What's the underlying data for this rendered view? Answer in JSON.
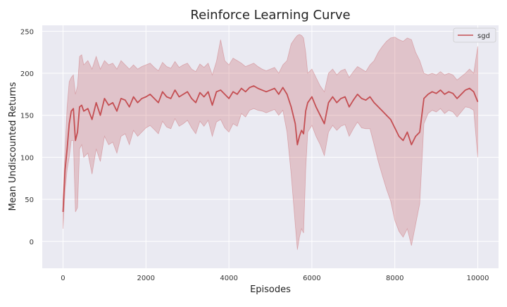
{
  "chart_data": {
    "type": "line",
    "title": "Reinforce Learning Curve",
    "xlabel": "Episodes",
    "ylabel": "Mean Undiscounted Returns",
    "xlim": [
      -500,
      10500
    ],
    "ylim": [
      -32,
      257
    ],
    "xticks": [
      0,
      2000,
      4000,
      6000,
      8000,
      10000
    ],
    "yticks": [
      0,
      50,
      100,
      150,
      200,
      250
    ],
    "grid": true,
    "legend_position": "top-right",
    "colors": {
      "line": "#c44e52",
      "band": "#c44e52",
      "background": "#eaeaf2",
      "grid": "#ffffff"
    },
    "series": [
      {
        "name": "sgd",
        "x": [
          0,
          50,
          100,
          150,
          200,
          250,
          300,
          350,
          400,
          450,
          500,
          600,
          700,
          800,
          900,
          1000,
          1100,
          1200,
          1300,
          1400,
          1500,
          1600,
          1700,
          1800,
          1900,
          2000,
          2100,
          2200,
          2300,
          2400,
          2500,
          2600,
          2700,
          2800,
          2900,
          3000,
          3100,
          3200,
          3300,
          3400,
          3500,
          3600,
          3700,
          3800,
          3900,
          4000,
          4100,
          4200,
          4300,
          4400,
          4500,
          4600,
          4700,
          4800,
          4900,
          5000,
          5100,
          5200,
          5300,
          5400,
          5500,
          5600,
          5650,
          5700,
          5750,
          5800,
          5850,
          5900,
          6000,
          6100,
          6200,
          6300,
          6400,
          6500,
          6600,
          6700,
          6800,
          6900,
          7000,
          7100,
          7200,
          7300,
          7400,
          7500,
          7600,
          7700,
          7800,
          7900,
          8000,
          8100,
          8200,
          8300,
          8400,
          8500,
          8600,
          8700,
          8800,
          8900,
          9000,
          9100,
          9200,
          9300,
          9400,
          9500,
          9600,
          9700,
          9800,
          9900,
          10000
        ],
        "mean": [
          35,
          85,
          110,
          140,
          155,
          158,
          120,
          130,
          160,
          162,
          155,
          158,
          145,
          165,
          150,
          170,
          162,
          165,
          155,
          170,
          168,
          160,
          172,
          165,
          170,
          172,
          175,
          170,
          165,
          178,
          172,
          170,
          180,
          172,
          175,
          178,
          170,
          165,
          177,
          172,
          178,
          162,
          178,
          180,
          175,
          170,
          178,
          175,
          182,
          178,
          183,
          185,
          182,
          180,
          178,
          180,
          182,
          175,
          183,
          175,
          160,
          140,
          115,
          125,
          132,
          128,
          155,
          165,
          172,
          160,
          150,
          140,
          165,
          172,
          165,
          170,
          172,
          160,
          168,
          175,
          170,
          168,
          172,
          165,
          160,
          155,
          150,
          145,
          135,
          125,
          120,
          130,
          115,
          125,
          130,
          170,
          175,
          178,
          176,
          180,
          175,
          178,
          176,
          170,
          175,
          180,
          182,
          178,
          166
        ],
        "upper": [
          50,
          110,
          160,
          190,
          195,
          198,
          175,
          185,
          220,
          222,
          210,
          215,
          205,
          220,
          205,
          215,
          210,
          212,
          205,
          215,
          210,
          205,
          210,
          205,
          208,
          210,
          212,
          207,
          203,
          213,
          208,
          206,
          214,
          207,
          210,
          212,
          205,
          202,
          211,
          207,
          212,
          198,
          214,
          240,
          215,
          210,
          218,
          215,
          212,
          208,
          210,
          212,
          208,
          205,
          203,
          205,
          207,
          200,
          210,
          215,
          235,
          242,
          245,
          246,
          245,
          242,
          225,
          200,
          205,
          195,
          185,
          178,
          200,
          205,
          198,
          203,
          205,
          195,
          202,
          208,
          205,
          202,
          210,
          215,
          225,
          232,
          238,
          242,
          243,
          240,
          238,
          242,
          240,
          225,
          215,
          200,
          198,
          200,
          198,
          202,
          198,
          200,
          198,
          192,
          196,
          200,
          205,
          200,
          232
        ],
        "lower": [
          15,
          60,
          85,
          100,
          120,
          120,
          35,
          40,
          110,
          115,
          100,
          105,
          80,
          110,
          95,
          125,
          115,
          118,
          105,
          125,
          128,
          115,
          132,
          125,
          130,
          135,
          138,
          133,
          128,
          143,
          136,
          134,
          146,
          137,
          140,
          144,
          135,
          128,
          143,
          137,
          144,
          125,
          142,
          145,
          135,
          130,
          140,
          137,
          152,
          148,
          156,
          158,
          156,
          155,
          153,
          155,
          157,
          150,
          156,
          130,
          80,
          20,
          -10,
          5,
          15,
          10,
          85,
          130,
          138,
          125,
          115,
          102,
          130,
          138,
          132,
          137,
          139,
          125,
          134,
          142,
          135,
          134,
          134,
          115,
          95,
          78,
          62,
          48,
          25,
          12,
          5,
          15,
          -5,
          20,
          45,
          140,
          152,
          156,
          154,
          158,
          152,
          156,
          154,
          148,
          154,
          160,
          159,
          156,
          100
        ]
      }
    ]
  }
}
